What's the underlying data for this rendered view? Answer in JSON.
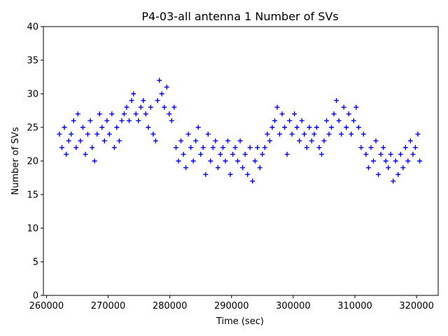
{
  "chart_data": {
    "type": "scatter",
    "title": "P4-03-all antenna 1 Number of SVs",
    "xlabel": "Time (sec)",
    "ylabel": "Number of SVs",
    "xlim": [
      259500,
      323500
    ],
    "ylim": [
      0,
      40
    ],
    "xticks": [
      260000,
      270000,
      280000,
      290000,
      300000,
      310000,
      320000
    ],
    "yticks": [
      0,
      5,
      10,
      15,
      20,
      25,
      30,
      35,
      40
    ],
    "marker": "+",
    "color": "#0000ff",
    "series": [
      {
        "name": "antenna 1",
        "points": [
          [
            262100,
            24
          ],
          [
            262500,
            22
          ],
          [
            262900,
            25
          ],
          [
            263200,
            21
          ],
          [
            263600,
            23
          ],
          [
            264000,
            24
          ],
          [
            264400,
            26
          ],
          [
            264800,
            22
          ],
          [
            265100,
            27
          ],
          [
            265500,
            23
          ],
          [
            265900,
            25
          ],
          [
            266300,
            21
          ],
          [
            266700,
            24
          ],
          [
            267100,
            26
          ],
          [
            267400,
            22
          ],
          [
            267800,
            20
          ],
          [
            268200,
            24
          ],
          [
            268600,
            27
          ],
          [
            269000,
            25
          ],
          [
            269400,
            23
          ],
          [
            269800,
            26
          ],
          [
            270200,
            24
          ],
          [
            270600,
            27
          ],
          [
            271000,
            22
          ],
          [
            271400,
            25
          ],
          [
            271800,
            23
          ],
          [
            272200,
            26
          ],
          [
            272600,
            27
          ],
          [
            273000,
            28
          ],
          [
            273400,
            26
          ],
          [
            273800,
            29
          ],
          [
            274100,
            30
          ],
          [
            274500,
            27
          ],
          [
            274900,
            26
          ],
          [
            275300,
            28
          ],
          [
            275700,
            29
          ],
          [
            276100,
            27
          ],
          [
            276500,
            25
          ],
          [
            276900,
            28
          ],
          [
            277300,
            24
          ],
          [
            277700,
            23
          ],
          [
            278000,
            29
          ],
          [
            278300,
            32
          ],
          [
            278700,
            30
          ],
          [
            279100,
            28
          ],
          [
            279500,
            31
          ],
          [
            279900,
            27
          ],
          [
            280300,
            26
          ],
          [
            280700,
            28
          ],
          [
            281000,
            22
          ],
          [
            281400,
            20
          ],
          [
            281800,
            23
          ],
          [
            282200,
            21
          ],
          [
            282600,
            19
          ],
          [
            283000,
            24
          ],
          [
            283400,
            22
          ],
          [
            283800,
            20
          ],
          [
            284200,
            23
          ],
          [
            284600,
            25
          ],
          [
            285000,
            21
          ],
          [
            285400,
            22
          ],
          [
            285800,
            18
          ],
          [
            286200,
            24
          ],
          [
            286600,
            20
          ],
          [
            287000,
            22
          ],
          [
            287400,
            23
          ],
          [
            287800,
            19
          ],
          [
            288200,
            21
          ],
          [
            288600,
            22
          ],
          [
            289000,
            20
          ],
          [
            289400,
            23
          ],
          [
            289800,
            18
          ],
          [
            290200,
            21
          ],
          [
            290600,
            22
          ],
          [
            291000,
            20
          ],
          [
            291400,
            23
          ],
          [
            291800,
            19
          ],
          [
            292200,
            21
          ],
          [
            292600,
            18
          ],
          [
            293000,
            22
          ],
          [
            293400,
            17
          ],
          [
            293800,
            20
          ],
          [
            294200,
            22
          ],
          [
            294600,
            19
          ],
          [
            295000,
            21
          ],
          [
            295400,
            22
          ],
          [
            295800,
            24
          ],
          [
            296200,
            23
          ],
          [
            296600,
            25
          ],
          [
            297000,
            26
          ],
          [
            297400,
            28
          ],
          [
            297800,
            24
          ],
          [
            298200,
            27
          ],
          [
            298600,
            25
          ],
          [
            299000,
            21
          ],
          [
            299400,
            26
          ],
          [
            299800,
            24
          ],
          [
            300200,
            27
          ],
          [
            300600,
            25
          ],
          [
            301000,
            23
          ],
          [
            301400,
            26
          ],
          [
            301800,
            24
          ],
          [
            302200,
            22
          ],
          [
            302600,
            25
          ],
          [
            303000,
            23
          ],
          [
            303400,
            24
          ],
          [
            303800,
            25
          ],
          [
            304200,
            22
          ],
          [
            304600,
            21
          ],
          [
            305000,
            23
          ],
          [
            305400,
            26
          ],
          [
            305800,
            24
          ],
          [
            306200,
            25
          ],
          [
            306600,
            27
          ],
          [
            307000,
            29
          ],
          [
            307400,
            26
          ],
          [
            307800,
            24
          ],
          [
            308200,
            28
          ],
          [
            308600,
            25
          ],
          [
            309000,
            27
          ],
          [
            309400,
            24
          ],
          [
            309800,
            26
          ],
          [
            310200,
            28
          ],
          [
            310600,
            25
          ],
          [
            311000,
            22
          ],
          [
            311400,
            24
          ],
          [
            311800,
            21
          ],
          [
            312200,
            19
          ],
          [
            312600,
            22
          ],
          [
            313000,
            20
          ],
          [
            313400,
            23
          ],
          [
            313800,
            18
          ],
          [
            314200,
            21
          ],
          [
            314600,
            22
          ],
          [
            315000,
            20
          ],
          [
            315400,
            19
          ],
          [
            315800,
            21
          ],
          [
            316200,
            17
          ],
          [
            316600,
            20
          ],
          [
            317000,
            18
          ],
          [
            317400,
            21
          ],
          [
            317800,
            19
          ],
          [
            318200,
            22
          ],
          [
            318600,
            20
          ],
          [
            319000,
            23
          ],
          [
            319400,
            21
          ],
          [
            319800,
            22
          ],
          [
            320200,
            24
          ],
          [
            320500,
            20
          ]
        ]
      }
    ]
  }
}
